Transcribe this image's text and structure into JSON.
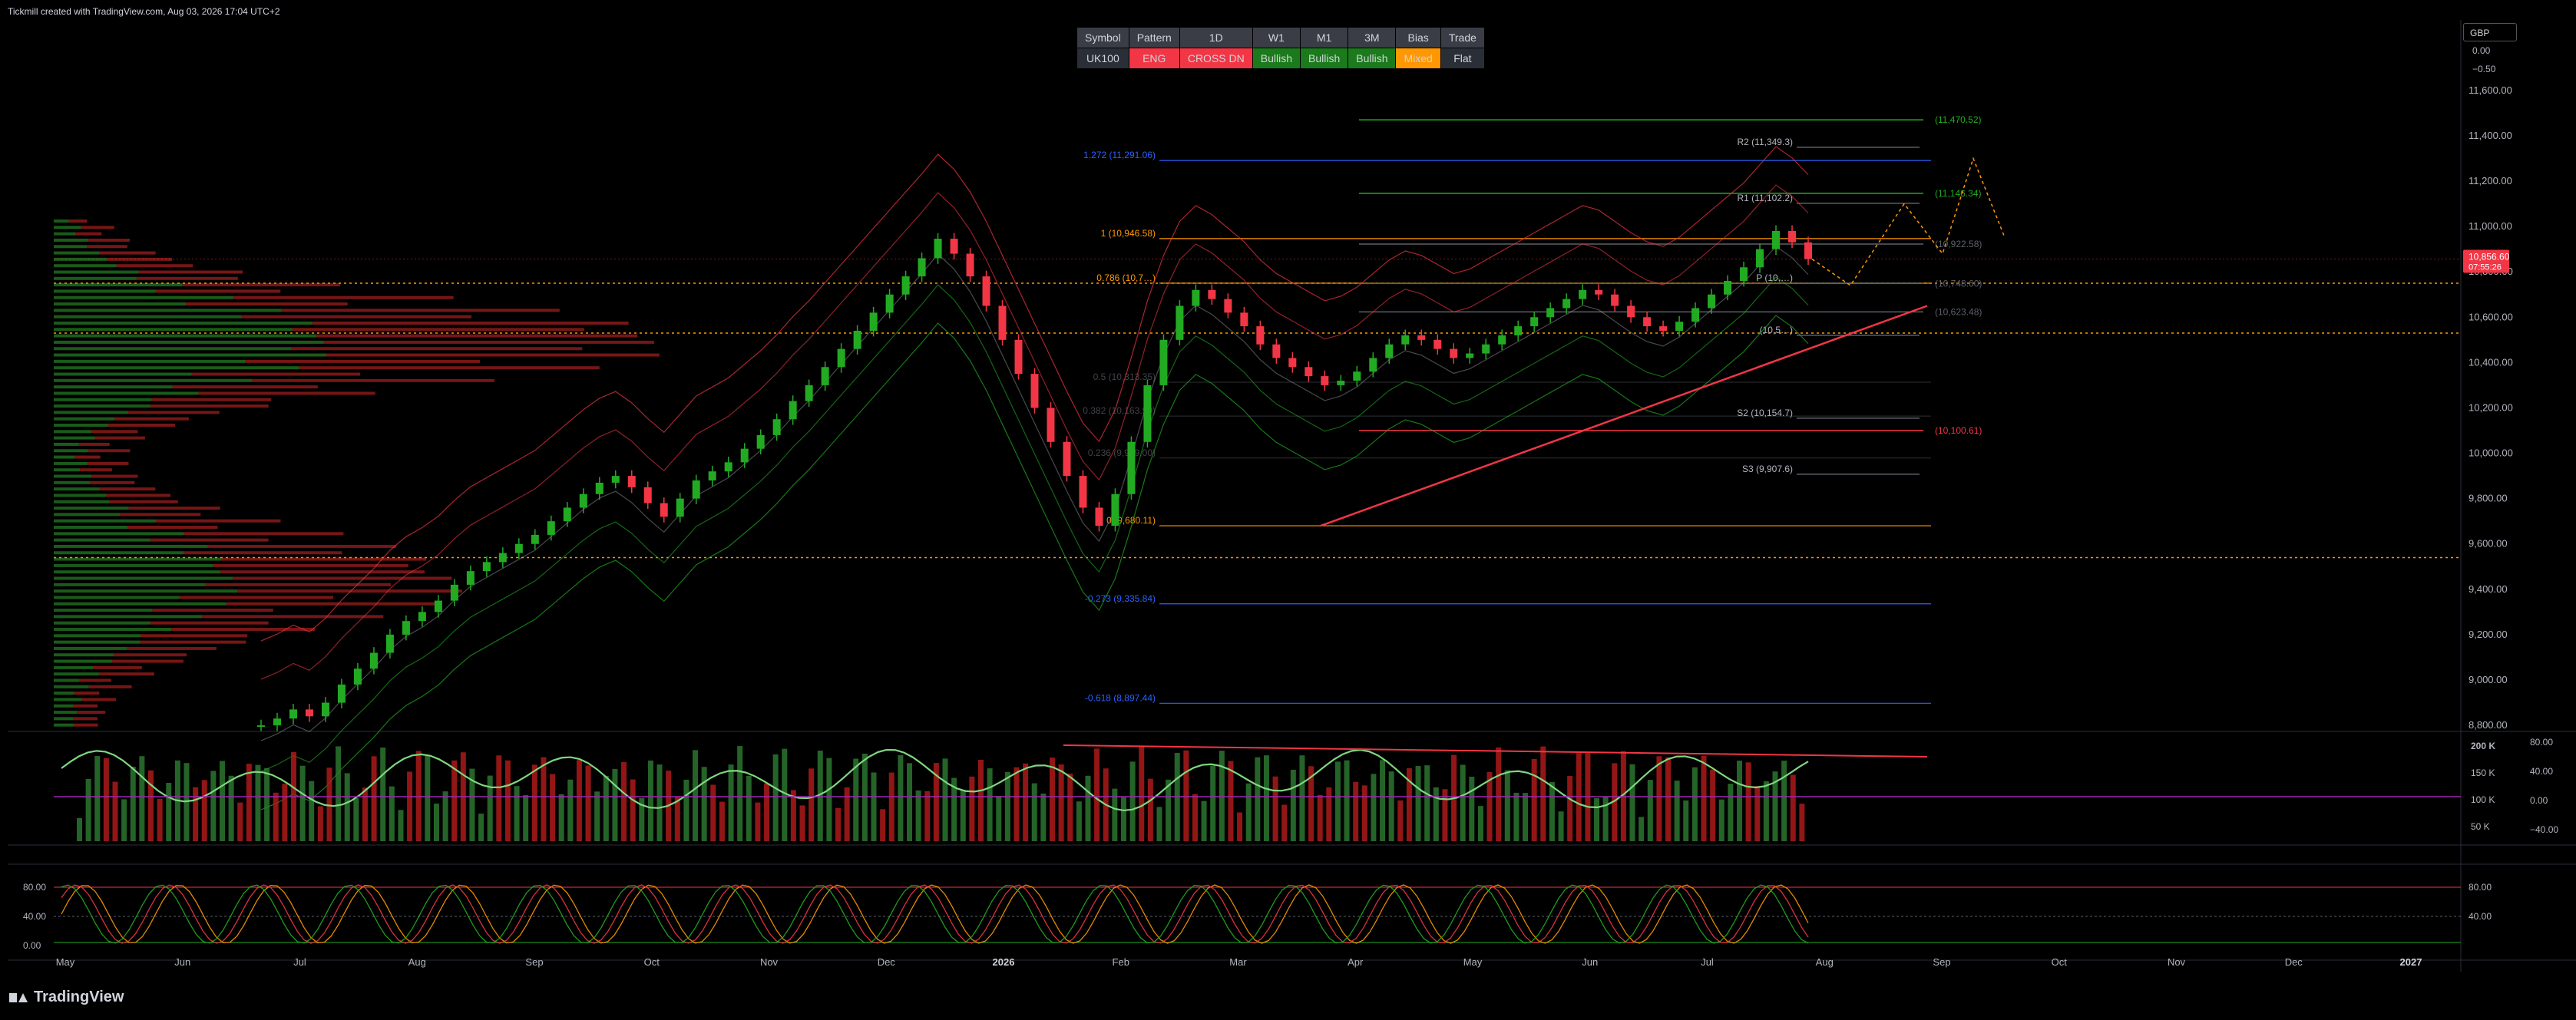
{
  "header": {
    "caption": "Tickmill created with TradingView.com, Aug 03, 2026 17:04 UTC+2"
  },
  "currency_box": {
    "label": "GBP"
  },
  "indicator_table": {
    "headers": [
      "Symbol",
      "Pattern",
      "1D",
      "W1",
      "M1",
      "3M",
      "Bias",
      "Trade"
    ],
    "values": [
      {
        "text": "UK100",
        "bg": "#2a2e36"
      },
      {
        "text": "ENG",
        "bg": "#f23645"
      },
      {
        "text": "CROSS DN",
        "bg": "#f23645"
      },
      {
        "text": "Bullish",
        "bg": "#1b7a1b"
      },
      {
        "text": "Bullish",
        "bg": "#1b7a1b"
      },
      {
        "text": "Bullish",
        "bg": "#1b7a1b"
      },
      {
        "text": "Mixed",
        "bg": "#ff9800"
      },
      {
        "text": "Flat",
        "bg": "#2a2e36"
      }
    ]
  },
  "footer": {
    "brand": "TradingView"
  },
  "colors": {
    "up": "#22ab22",
    "down": "#f23645",
    "fib": "#ff9800",
    "ext": "#2962ff",
    "pivot": "#b2b5be"
  },
  "chart_data": {
    "type": "line",
    "symbol": "UK100",
    "timeframe": "1D",
    "x_labels": [
      "May",
      "Jun",
      "Jul",
      "Aug",
      "Sep",
      "Oct",
      "Nov",
      "Dec",
      "2026",
      "Feb",
      "Mar",
      "Apr",
      "May",
      "Jun",
      "Jul",
      "Aug",
      "Sep",
      "Oct",
      "Nov",
      "Dec",
      "2027"
    ],
    "price_axis_ticks": [
      "11,600.00",
      "11,400.00",
      "11,200.00",
      "11,000.00",
      "10,800.00",
      "10,600.00",
      "10,400.00",
      "10,200.00",
      "10,000.00",
      "9,800.00",
      "9,600.00",
      "9,400.00",
      "9,200.00",
      "9,000.00",
      "8,800.00"
    ],
    "price_axis_top_labels": [
      "0.00",
      "−0.50"
    ],
    "ylim": [
      8780,
      11640
    ],
    "last_price": {
      "value": 10856.6,
      "label": "10,856.60",
      "countdown": "07:55:26"
    },
    "series": [
      {
        "name": "",
        "values": [
          8800,
          8830,
          8870,
          8840,
          8900,
          8980,
          9050,
          9120,
          9200,
          9260,
          9300,
          9350,
          9420,
          9480,
          9520,
          9560,
          9600,
          9640,
          9700,
          9760,
          9820,
          9870,
          9900,
          9850,
          9780,
          9720,
          9800,
          9880,
          9920,
          9960,
          10020,
          10080,
          10150,
          10230,
          10300,
          10380,
          10460,
          10540,
          10620,
          10700,
          10780,
          10860,
          10946,
          10880,
          10780,
          10650,
          10500,
          10350,
          10200,
          10050,
          9900,
          9760,
          9680,
          9820,
          10050,
          10300,
          10500,
          10650,
          10720,
          10680,
          10620,
          10560,
          10480,
          10420,
          10380,
          10340,
          10300,
          10320,
          10360,
          10420,
          10480,
          10520,
          10500,
          10460,
          10420,
          10440,
          10480,
          10520,
          10560,
          10600,
          10640,
          10680,
          10720,
          10700,
          10650,
          10600,
          10560,
          10540,
          10580,
          10640,
          10700,
          10760,
          10820,
          10900,
          10980,
          10930,
          10856
        ]
      }
    ],
    "fib_levels": [
      {
        "label": "1 (10,946.58)",
        "value": 10946.58
      },
      {
        "label": "0.786 (10,7…)",
        "value": 10750
      },
      {
        "label": "0 (9,680.11)",
        "value": 9680.11
      },
      {
        "label": "-0.273 (9,335.84)",
        "value": 9335.84
      },
      {
        "label": "-0.618 (8,897.44)",
        "value": 8897.44
      },
      {
        "label": "1.272 (11,291.06)",
        "value": 11291.06
      }
    ],
    "faint_fib_labels": [
      {
        "label": "0.5 (10,313.35)",
        "value": 10313.35
      },
      {
        "label": "0.382 (10,163.90)",
        "value": 10163.9
      },
      {
        "label": "0.236 (9,979.00)",
        "value": 9979.0
      }
    ],
    "pivot_levels": [
      {
        "label": "R2 (11,349.3)",
        "value": 11349.3
      },
      {
        "label": "R1 (11,102.2)",
        "value": 11102.2
      },
      {
        "label": "P (10,…)",
        "value": 10750
      },
      {
        "label": "(10,5…)",
        "value": 10520
      },
      {
        "label": "S2 (10,154.7)",
        "value": 10154.7
      },
      {
        "label": "S3 (9,907.6)",
        "value": 9907.6
      }
    ],
    "target_levels": [
      {
        "label": "(11,470.52)",
        "value": 11470.52,
        "color": "#22ab22"
      },
      {
        "label": "(11,146.34)",
        "value": 11146.34,
        "color": "#22ab22"
      },
      {
        "label": "(10,922.58)",
        "value": 10922.58,
        "color": "#5d606b"
      },
      {
        "label": "(10,748.60)",
        "value": 10748.6,
        "color": "#5d606b"
      },
      {
        "label": "(10,623.48)",
        "value": 10623.48,
        "color": "#5d606b"
      },
      {
        "label": "(10,100.61)",
        "value": 10100.61,
        "color": "#f23645"
      }
    ],
    "volume_axis_ticks": [
      "200 K",
      "150 K",
      "100 K",
      "50 K"
    ],
    "rsi_axis_ticks": [
      "80.00",
      "40.00",
      "0.00",
      "−40.00"
    ],
    "stoch_axis_ticks": [
      "80.00",
      "40.00",
      "0.00"
    ],
    "stoch_right_ticks": [
      "80.00",
      "40.00"
    ],
    "grid": false
  }
}
